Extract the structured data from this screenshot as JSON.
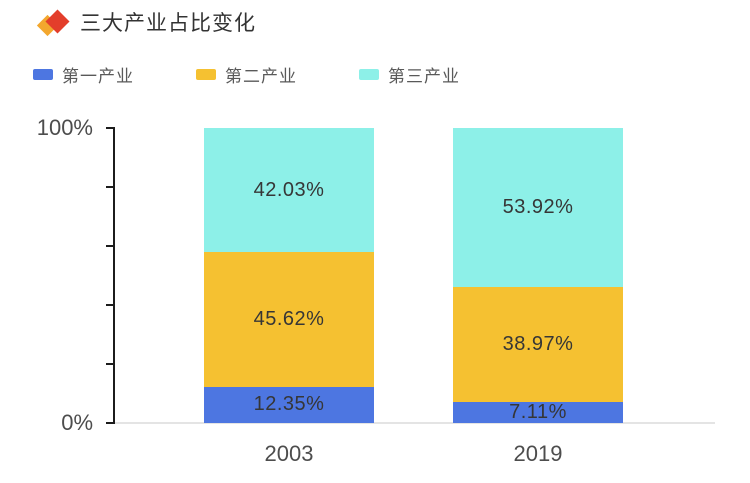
{
  "title": {
    "text": "三大产业占比变化",
    "icon": "double-diamond-icon"
  },
  "colors": {
    "primary": "#4d76e1",
    "secondary": "#f5c131",
    "tertiary": "#8df0e8",
    "icon_yellow": "#f3a72e",
    "icon_red": "#e33e2b",
    "axis": "#1c1c1c",
    "baseline": "#e4e4e4",
    "value_label": "#363636",
    "tick_label": "#4d4d4d",
    "legend_label": "#595959"
  },
  "legend": [
    {
      "label": "第一产业",
      "color": "#4d76e1"
    },
    {
      "label": "第二产业",
      "color": "#f5c131"
    },
    {
      "label": "第三产业",
      "color": "#8df0e8"
    }
  ],
  "y_axis": {
    "top_label": "100%",
    "bottom_label": "0%",
    "ticks_percent": [
      0,
      20,
      40,
      60,
      80,
      100
    ]
  },
  "chart_data": {
    "type": "bar",
    "stacked": true,
    "title": "三大产业占比变化",
    "categories": [
      "2003",
      "2019"
    ],
    "series": [
      {
        "name": "第一产业",
        "color_key": "primary",
        "values": [
          12.35,
          7.11
        ]
      },
      {
        "name": "第二产业",
        "color_key": "secondary",
        "values": [
          45.62,
          38.97
        ]
      },
      {
        "name": "第三产业",
        "color_key": "tertiary",
        "values": [
          42.03,
          53.92
        ]
      }
    ],
    "value_label_format": "{value}%",
    "xlabel": "",
    "ylabel": "",
    "ylim": [
      0,
      100
    ],
    "grid": false,
    "legend_position": "top-left"
  }
}
